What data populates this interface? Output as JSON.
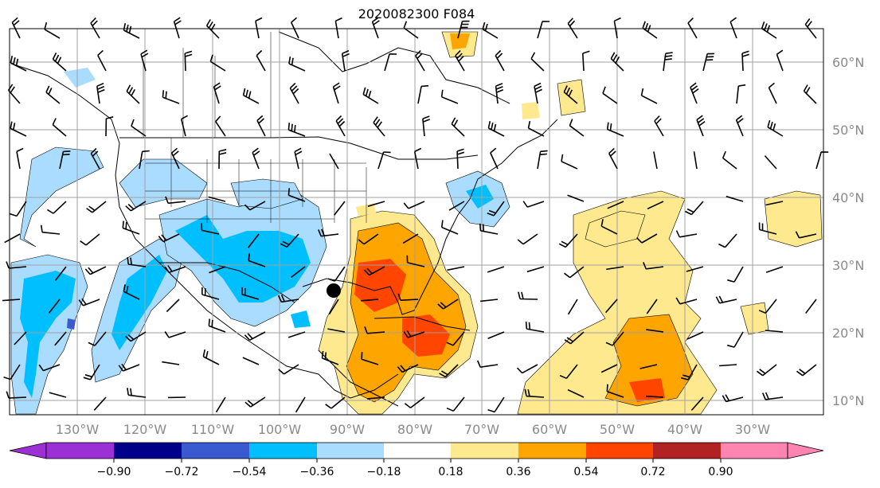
{
  "title": "2020082300 F084",
  "lon_labels": [
    "130°W",
    "120°W",
    "110°W",
    "100°W",
    "90°W",
    "80°W",
    "70°W",
    "60°W",
    "50°W",
    "40°W",
    "30°W"
  ],
  "lat_labels": [
    "60°N",
    "50°N",
    "40°N",
    "30°N",
    "20°N",
    "10°N"
  ],
  "colorbar": {
    "ticks": [
      "−0.90",
      "−0.72",
      "−0.54",
      "−0.36",
      "−0.18",
      "0.18",
      "0.36",
      "0.54",
      "0.72",
      "0.90"
    ],
    "colors": [
      "#9b30d6",
      "#00008b",
      "#3a5bd0",
      "#00bfff",
      "#aadcff",
      "#ffffff",
      "#ffe98f",
      "#ffa500",
      "#ff4500",
      "#b22222",
      "#ff85b0"
    ]
  },
  "colors": {
    "neg_light": "#aadcff",
    "neg_mid": "#00bfff",
    "neg_dark": "#3a5bd0",
    "pos_light": "#ffe98f",
    "pos_mid": "#ffa500",
    "pos_dark": "#ff4500",
    "grid": "#a0a0a0"
  }
}
